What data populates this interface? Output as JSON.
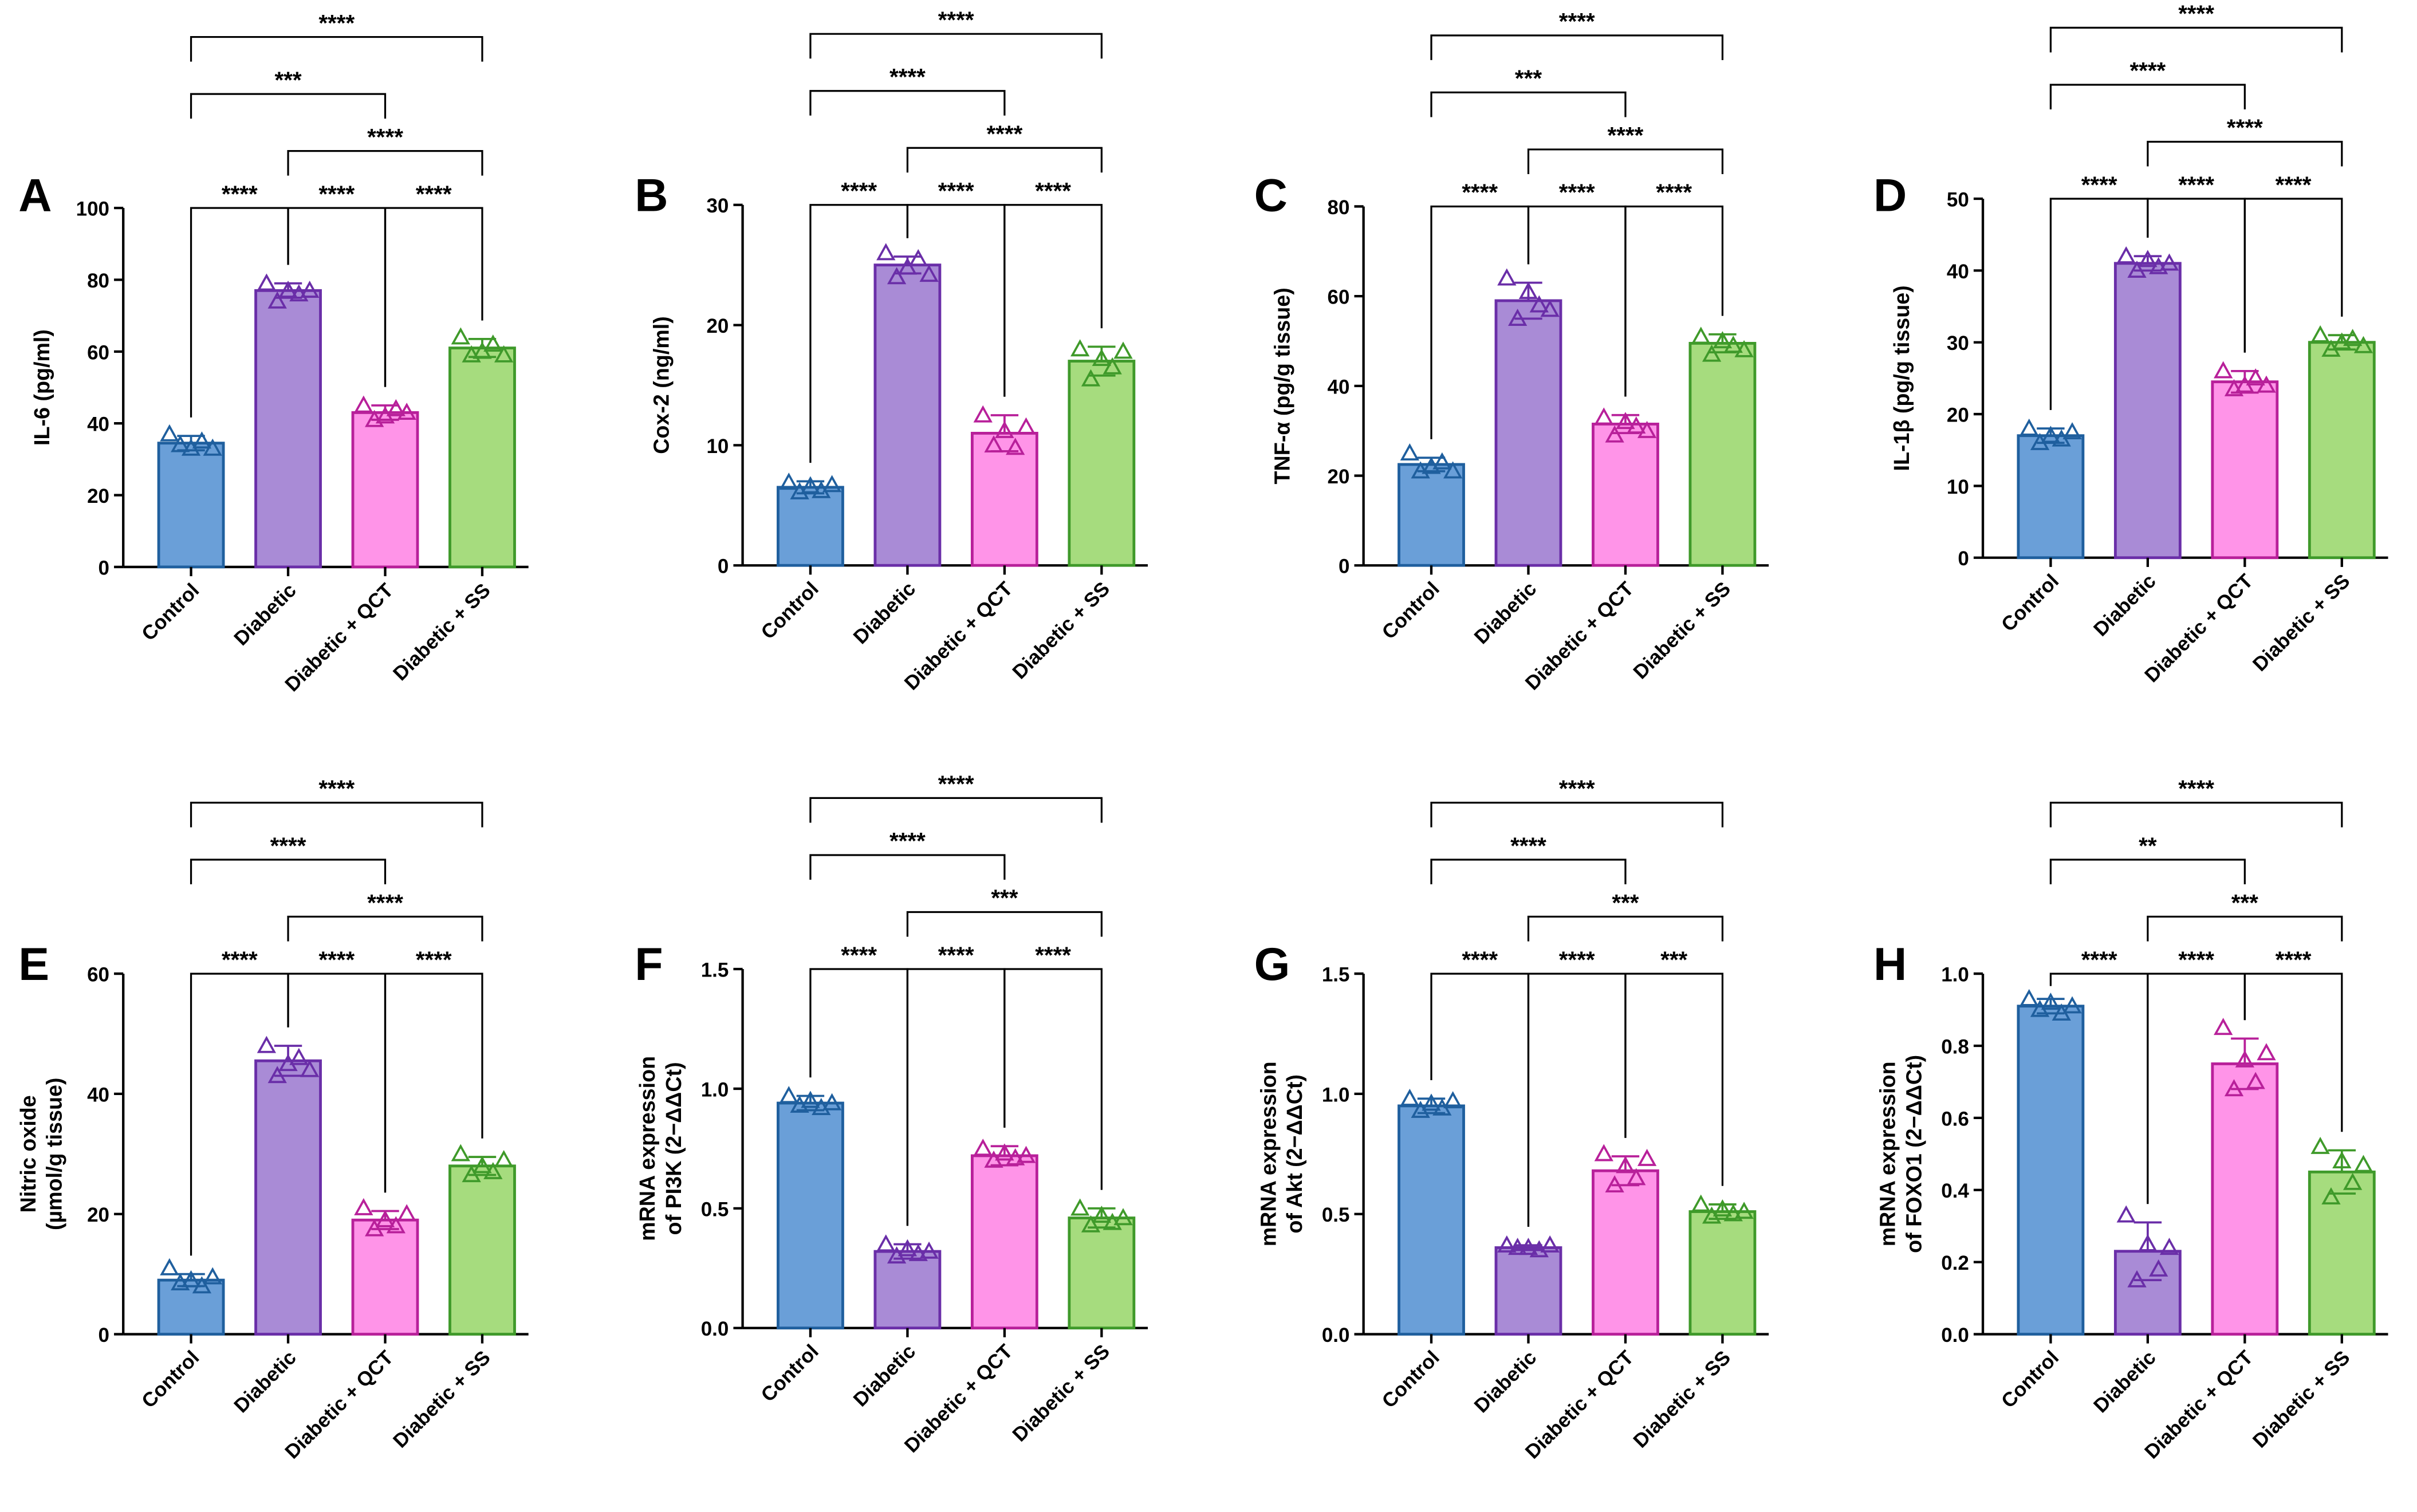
{
  "categories": [
    "Control",
    "Diabetic",
    "Diabetic + QCT",
    "Diabetic + SS"
  ],
  "colors": {
    "fill": [
      "#6a9fd8",
      "#a98bd6",
      "#ff94e8",
      "#a6dc7e"
    ],
    "stroke": [
      "#1f5f9e",
      "#6a2ea8",
      "#b8209a",
      "#3f9a2a"
    ]
  },
  "chart_data": [
    {
      "panel": "A",
      "type": "bar",
      "ylabel": "IL-6 (pg/ml)",
      "ylim": [
        0,
        100
      ],
      "ticks": [
        0,
        20,
        40,
        60,
        80,
        100
      ],
      "values": [
        34.5,
        77,
        43,
        61
      ],
      "sd": [
        2,
        2,
        2,
        2.5
      ],
      "points": [
        [
          37,
          34,
          33,
          35,
          33
        ],
        [
          79,
          74,
          77,
          76,
          77
        ],
        [
          45,
          41,
          42,
          44,
          43
        ],
        [
          64,
          59,
          60,
          62,
          59
        ]
      ],
      "comparisons": [
        {
          "from": 0,
          "to": 1,
          "label": "****"
        },
        {
          "from": 1,
          "to": 2,
          "label": "****"
        },
        {
          "from": 2,
          "to": 3,
          "label": "****"
        },
        {
          "from": 1,
          "to": 3,
          "label": "****"
        },
        {
          "from": 0,
          "to": 2,
          "label": "***"
        },
        {
          "from": 0,
          "to": 3,
          "label": "****"
        }
      ]
    },
    {
      "panel": "B",
      "type": "bar",
      "ylabel": "Cox-2 (ng/ml)",
      "ylim": [
        0,
        30
      ],
      "ticks": [
        0,
        10,
        20,
        30
      ],
      "values": [
        6.5,
        25,
        11,
        17
      ],
      "sd": [
        0.5,
        0.7,
        1.5,
        1.2
      ],
      "points": [
        [
          6.9,
          6.1,
          6.6,
          6.2,
          6.7
        ],
        [
          26,
          24,
          24.8,
          25.5,
          24.2
        ],
        [
          12.5,
          10,
          11.2,
          9.8,
          11.5
        ],
        [
          18,
          15.5,
          17.2,
          16.5,
          17.8
        ]
      ],
      "comparisons": [
        {
          "from": 0,
          "to": 1,
          "label": "****"
        },
        {
          "from": 1,
          "to": 2,
          "label": "****"
        },
        {
          "from": 2,
          "to": 3,
          "label": "****"
        },
        {
          "from": 1,
          "to": 3,
          "label": "****"
        },
        {
          "from": 0,
          "to": 2,
          "label": "****"
        },
        {
          "from": 0,
          "to": 3,
          "label": "****"
        }
      ]
    },
    {
      "panel": "C",
      "type": "bar",
      "ylabel": "TNF-α (pg/g tissue)",
      "ylim": [
        0,
        80
      ],
      "ticks": [
        0,
        20,
        40,
        60,
        80
      ],
      "values": [
        22.5,
        59,
        31.5,
        49.5
      ],
      "sd": [
        1.5,
        4,
        2,
        2
      ],
      "points": [
        [
          25,
          21,
          22,
          23,
          21
        ],
        [
          64,
          55,
          61,
          58,
          57
        ],
        [
          33,
          29,
          32,
          31,
          30
        ],
        [
          51,
          47,
          50,
          49,
          48
        ]
      ],
      "comparisons": [
        {
          "from": 0,
          "to": 1,
          "label": "****"
        },
        {
          "from": 1,
          "to": 2,
          "label": "****"
        },
        {
          "from": 2,
          "to": 3,
          "label": "****"
        },
        {
          "from": 1,
          "to": 3,
          "label": "****"
        },
        {
          "from": 0,
          "to": 2,
          "label": "***"
        },
        {
          "from": 0,
          "to": 3,
          "label": "****"
        }
      ]
    },
    {
      "panel": "D",
      "type": "bar",
      "ylabel": "IL-1β (pg/g tissue)",
      "ylim": [
        0,
        50
      ],
      "ticks": [
        0,
        10,
        20,
        30,
        40,
        50
      ],
      "values": [
        17,
        41,
        24.5,
        30
      ],
      "sd": [
        1,
        1,
        1.5,
        1
      ],
      "points": [
        [
          18,
          16,
          17,
          16.5,
          17.5
        ],
        [
          42,
          40,
          41.5,
          40.5,
          41
        ],
        [
          26,
          23.5,
          24,
          25,
          24
        ],
        [
          31,
          29,
          30,
          30.5,
          29.5
        ]
      ],
      "comparisons": [
        {
          "from": 0,
          "to": 1,
          "label": "****"
        },
        {
          "from": 1,
          "to": 2,
          "label": "****"
        },
        {
          "from": 2,
          "to": 3,
          "label": "****"
        },
        {
          "from": 1,
          "to": 3,
          "label": "****"
        },
        {
          "from": 0,
          "to": 2,
          "label": "****"
        },
        {
          "from": 0,
          "to": 3,
          "label": "****"
        }
      ]
    },
    {
      "panel": "E",
      "type": "bar",
      "ylabel": [
        "Nitric oxide",
        "(µmol/g tissue)"
      ],
      "ylim": [
        0,
        60
      ],
      "ticks": [
        0,
        20,
        40,
        60
      ],
      "values": [
        9,
        45.5,
        19,
        28
      ],
      "sd": [
        1,
        2.5,
        1.5,
        1.5
      ],
      "points": [
        [
          11,
          8.5,
          9,
          8,
          9.5
        ],
        [
          48,
          43,
          45,
          46,
          44
        ],
        [
          21,
          17.5,
          19,
          18,
          20
        ],
        [
          30,
          26.5,
          28,
          27,
          29
        ]
      ],
      "comparisons": [
        {
          "from": 0,
          "to": 1,
          "label": "****"
        },
        {
          "from": 1,
          "to": 2,
          "label": "****"
        },
        {
          "from": 2,
          "to": 3,
          "label": "****"
        },
        {
          "from": 1,
          "to": 3,
          "label": "****"
        },
        {
          "from": 0,
          "to": 2,
          "label": "****"
        },
        {
          "from": 0,
          "to": 3,
          "label": "****"
        }
      ]
    },
    {
      "panel": "F",
      "type": "bar",
      "ylabel": [
        "mRNA expression",
        "of PI3K (2−ΔΔCt)"
      ],
      "ylim": [
        0,
        1.5
      ],
      "ticks": [
        "0.0",
        "0.5",
        "1.0",
        "1.5"
      ],
      "values": [
        0.94,
        0.32,
        0.72,
        0.46
      ],
      "sd": [
        0.03,
        0.03,
        0.04,
        0.04
      ],
      "points": [
        [
          0.97,
          0.93,
          0.95,
          0.92,
          0.94
        ],
        [
          0.35,
          0.3,
          0.33,
          0.31,
          0.32
        ],
        [
          0.75,
          0.7,
          0.73,
          0.71,
          0.72
        ],
        [
          0.5,
          0.43,
          0.47,
          0.44,
          0.46
        ]
      ],
      "comparisons": [
        {
          "from": 0,
          "to": 1,
          "label": "****"
        },
        {
          "from": 1,
          "to": 2,
          "label": "****"
        },
        {
          "from": 2,
          "to": 3,
          "label": "****"
        },
        {
          "from": 1,
          "to": 3,
          "label": "***"
        },
        {
          "from": 0,
          "to": 2,
          "label": "****"
        },
        {
          "from": 0,
          "to": 3,
          "label": "****"
        }
      ]
    },
    {
      "panel": "G",
      "type": "bar",
      "ylabel": [
        "mRNA expression",
        "of Akt (2−ΔΔCt)"
      ],
      "ylim": [
        0,
        1.5
      ],
      "ticks": [
        "0.0",
        "0.5",
        "1.0",
        "1.5"
      ],
      "values": [
        0.95,
        0.36,
        0.68,
        0.51
      ],
      "sd": [
        0.03,
        0.01,
        0.06,
        0.03
      ],
      "points": [
        [
          0.98,
          0.93,
          0.96,
          0.94,
          0.97
        ],
        [
          0.37,
          0.36,
          0.36,
          0.35,
          0.37
        ],
        [
          0.75,
          0.62,
          0.7,
          0.65,
          0.73
        ],
        [
          0.54,
          0.49,
          0.52,
          0.5,
          0.51
        ]
      ],
      "comparisons": [
        {
          "from": 0,
          "to": 1,
          "label": "****"
        },
        {
          "from": 1,
          "to": 2,
          "label": "****"
        },
        {
          "from": 2,
          "to": 3,
          "label": "***"
        },
        {
          "from": 1,
          "to": 3,
          "label": "***"
        },
        {
          "from": 0,
          "to": 2,
          "label": "****"
        },
        {
          "from": 0,
          "to": 3,
          "label": "****"
        }
      ]
    },
    {
      "panel": "H",
      "type": "bar",
      "ylabel": [
        "mRNA expression",
        "of FOXO1 (2−ΔΔCt)"
      ],
      "ylim": [
        0,
        1.0
      ],
      "ticks": [
        "0.0",
        "0.2",
        "0.4",
        "0.6",
        "0.8",
        "1.0"
      ],
      "values": [
        0.91,
        0.23,
        0.75,
        0.45
      ],
      "sd": [
        0.02,
        0.08,
        0.07,
        0.06
      ],
      "points": [
        [
          0.93,
          0.9,
          0.92,
          0.89,
          0.91
        ],
        [
          0.33,
          0.15,
          0.25,
          0.18,
          0.24
        ],
        [
          0.85,
          0.68,
          0.76,
          0.7,
          0.78
        ],
        [
          0.52,
          0.38,
          0.48,
          0.42,
          0.47
        ]
      ],
      "comparisons": [
        {
          "from": 0,
          "to": 1,
          "label": "****"
        },
        {
          "from": 1,
          "to": 2,
          "label": "****"
        },
        {
          "from": 2,
          "to": 3,
          "label": "****"
        },
        {
          "from": 1,
          "to": 3,
          "label": "***"
        },
        {
          "from": 0,
          "to": 2,
          "label": "**"
        },
        {
          "from": 0,
          "to": 3,
          "label": "****"
        }
      ]
    }
  ]
}
